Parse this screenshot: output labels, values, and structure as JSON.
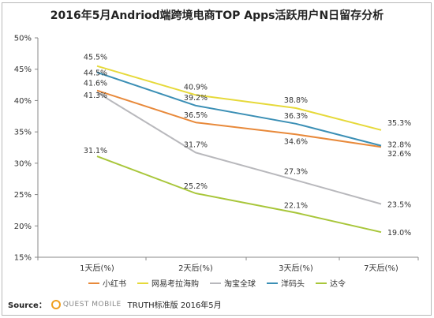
{
  "title": "2016年5月Andriod端跨境电商TOP Apps活跃用户N日留存分析",
  "source": {
    "label": "Source：",
    "logo_text": "QUEST MOBILE",
    "text": "TRUTH标准版 2016年5月"
  },
  "colors": {
    "小红书": "#e8893a",
    "网易考拉海购": "#e6d93a",
    "淘宝全球": "#b8b8bc",
    "洋码头": "#3b8fb5",
    "达令": "#a8c63a",
    "logo": "#f0a020"
  },
  "chart_data": {
    "type": "line",
    "title": "2016年5月Andriod端跨境电商TOP Apps活跃用户N日留存分析",
    "categories": [
      "1天后(%)",
      "2天后(%)",
      "3天后(%)",
      "7天后(%)"
    ],
    "ylim": [
      15,
      50
    ],
    "yticks": [
      "15%",
      "20%",
      "25%",
      "30%",
      "35%",
      "40%",
      "45%",
      "50%"
    ],
    "grid": false,
    "legend": "bottom",
    "series": [
      {
        "name": "小红书",
        "values": [
          41.6,
          36.5,
          34.6,
          32.6
        ],
        "labels": [
          "41.6%",
          "36.5%",
          "34.6%",
          "32.6%"
        ]
      },
      {
        "name": "网易考拉海购",
        "values": [
          45.5,
          40.9,
          38.8,
          35.3
        ],
        "labels": [
          "45.5%",
          "40.9%",
          "38.8%",
          "35.3%"
        ]
      },
      {
        "name": "淘宝全球",
        "values": [
          41.3,
          31.7,
          27.3,
          23.5
        ],
        "labels": [
          "41.3%",
          "31.7%",
          "27.3%",
          "23.5%"
        ]
      },
      {
        "name": "洋码头",
        "values": [
          44.5,
          39.2,
          36.3,
          32.8
        ],
        "labels": [
          "44.5%",
          "39.2%",
          "36.3%",
          "32.8%"
        ]
      },
      {
        "name": "达令",
        "values": [
          31.1,
          25.2,
          22.1,
          19.0
        ],
        "labels": [
          "31.1%",
          "25.2%",
          "22.1%",
          "19.0%"
        ]
      }
    ]
  }
}
